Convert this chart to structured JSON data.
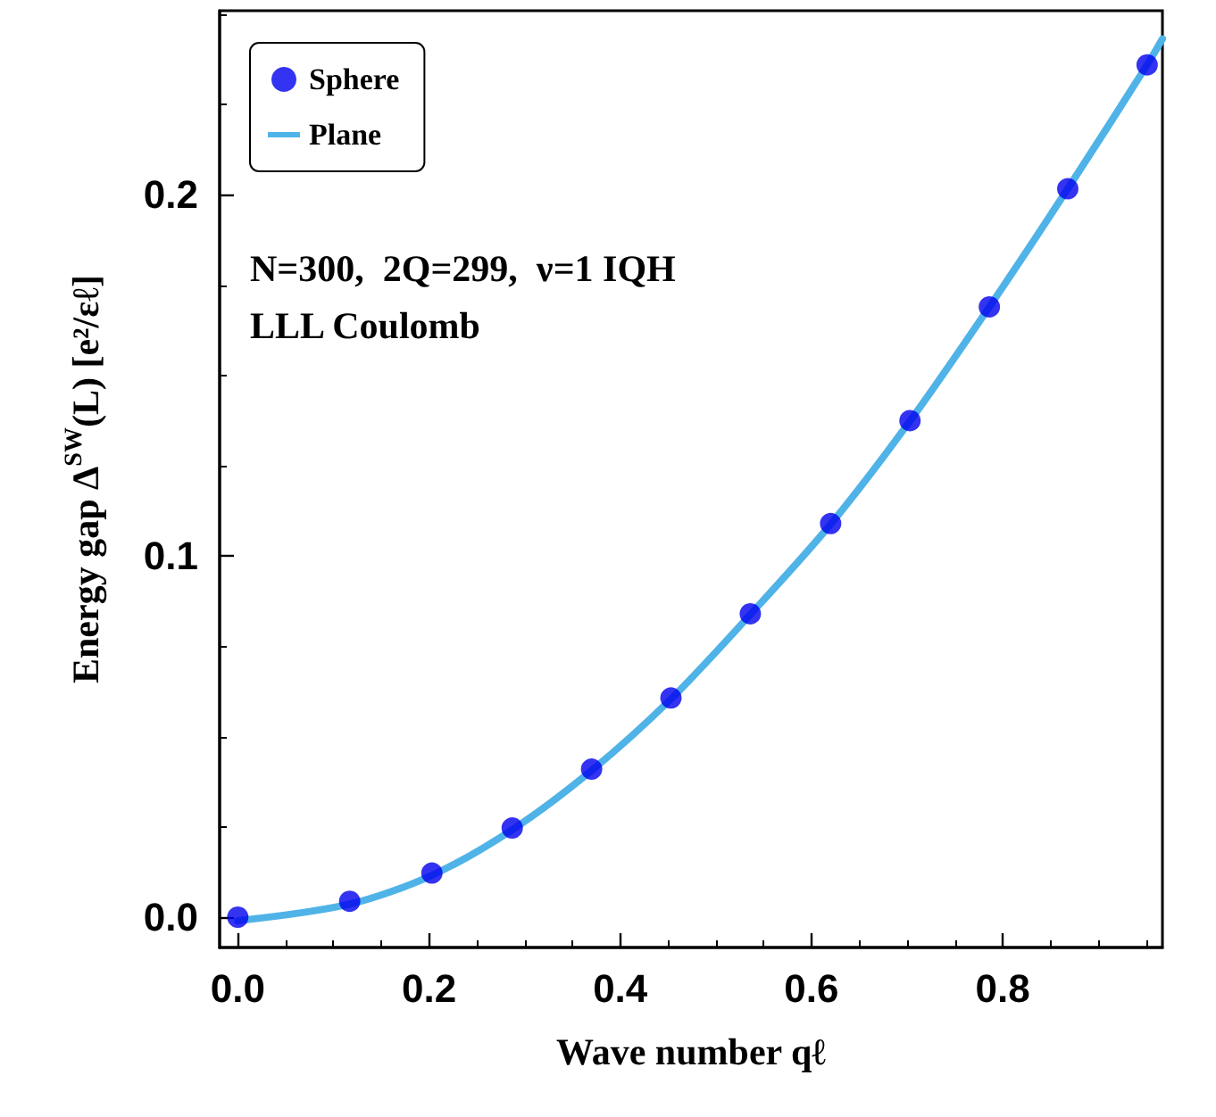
{
  "chart_data": {
    "type": "scatter",
    "xlabel": "Wave number qℓ",
    "ylabel": "Energy gap Δ$^{SW}$(L) [e²/εℓ]",
    "annotations": [
      "N=300,  2Q=299,  ν=1 IQH",
      "LLL Coulomb"
    ],
    "x": [
      0,
      0.117,
      0.203,
      0.287,
      0.37,
      0.453,
      0.536,
      0.62,
      0.703,
      0.786,
      0.868,
      0.951
    ],
    "series": [
      {
        "name": "Sphere",
        "color": "#0000ee",
        "marker": "circle",
        "values": [
          0,
          0.0044,
          0.0122,
          0.0247,
          0.041,
          0.0607,
          0.084,
          0.109,
          0.1375,
          0.169,
          0.2017,
          0.236
        ]
      },
      {
        "name": "Plane",
        "type": "line",
        "color": "#4fb3e8",
        "marker": "none",
        "x": [
          0,
          0.117,
          0.203,
          0.287,
          0.37,
          0.453,
          0.536,
          0.62,
          0.703,
          0.786,
          0.868,
          0.951,
          0.967
        ],
        "values": [
          -0.001,
          0.0036,
          0.0116,
          0.0242,
          0.0406,
          0.0604,
          0.0838,
          0.1088,
          0.1374,
          0.169,
          0.2017,
          0.236,
          0.2432
        ]
      }
    ],
    "xlim": [
      -0.019,
      0.967
    ],
    "xticks": [
      {
        "value": 0,
        "label": "0.0"
      },
      0.2,
      0.4,
      0.6,
      0.8
    ],
    "ylim": [
      -0.0084,
      0.251
    ],
    "yticks": [
      {
        "value": 0,
        "label": "0.0"
      },
      0.1,
      0.2
    ],
    "grid": false,
    "legend": "top left"
  }
}
